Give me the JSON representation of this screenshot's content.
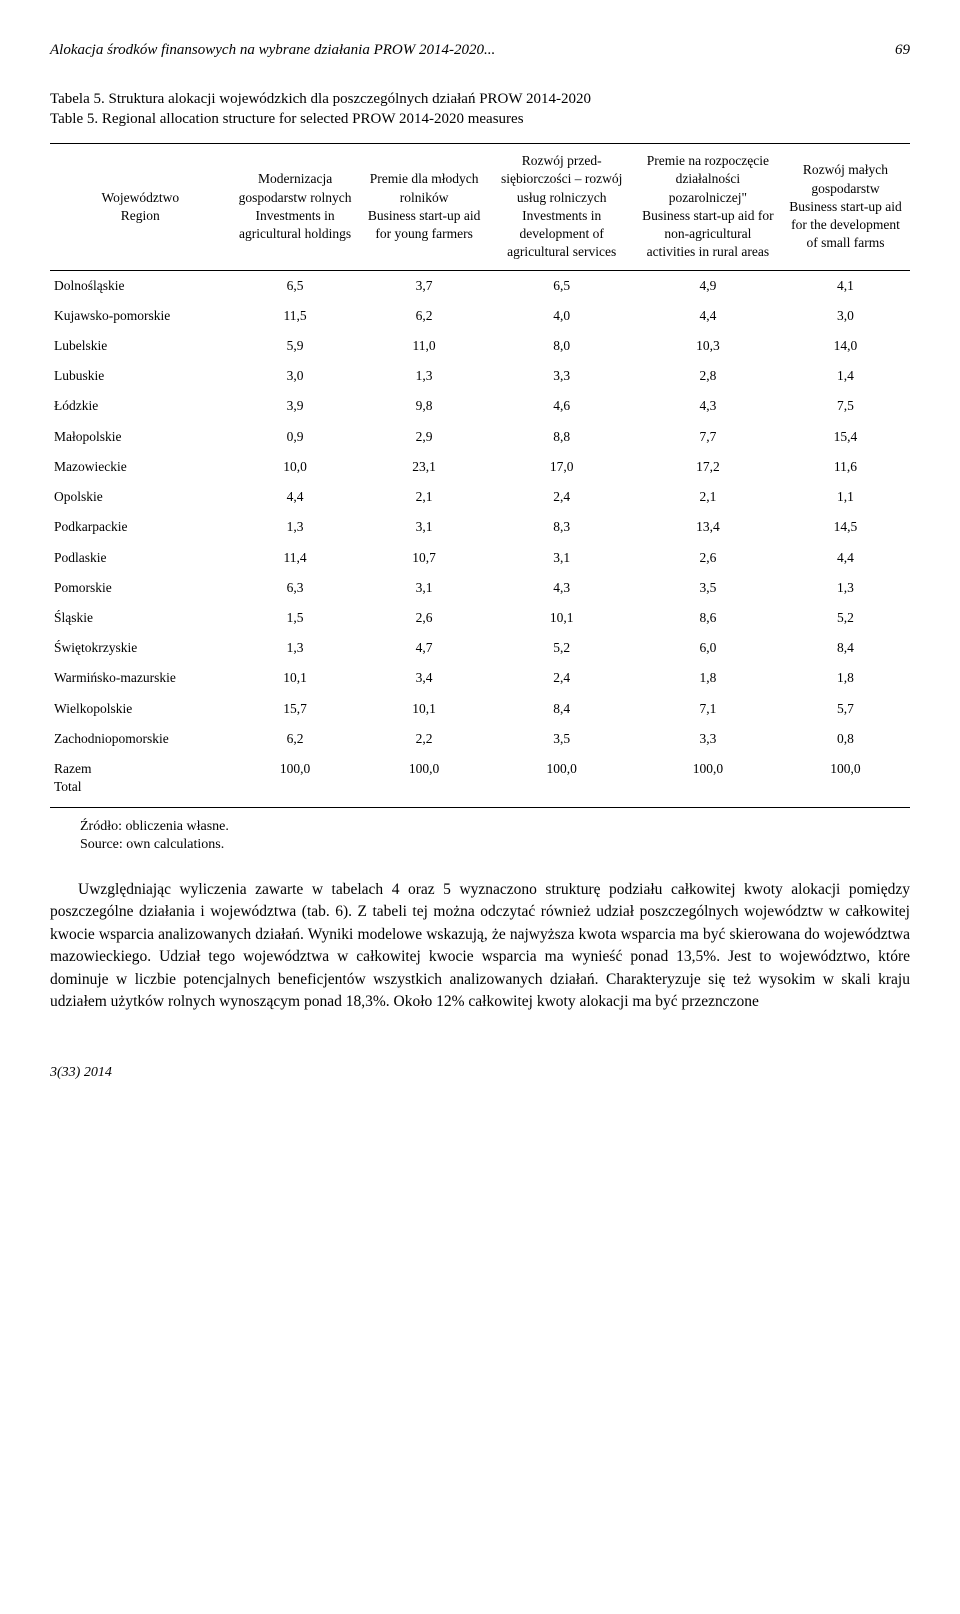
{
  "header": {
    "title_left": "Alokacja środków finansowych na wybrane działania PROW 2014-2020...",
    "page_num": "69"
  },
  "table_caption": {
    "line1": "Tabela 5. Struktura alokacji wojewódzkich dla poszczególnych działań PROW 2014-2020",
    "line2": "Table 5. Regional allocation structure for selected PROW 2014-2020 measures"
  },
  "columns": [
    {
      "pl": "Województwo",
      "en": "Region"
    },
    {
      "pl": "Modernizacja gospodarstw rolnych",
      "en": "Investments in agricultural holdings"
    },
    {
      "pl": "Premie dla młodych rolników",
      "en": "Business start-up aid for young farmers"
    },
    {
      "pl": "Rozwój przed-siębiorczości – rozwój usług rolniczych",
      "en": "Investments in development of agricultural services"
    },
    {
      "pl": "Premie na rozpoczęcie działalności pozarolniczej\"",
      "en": "Business start-up aid for non-agricultural activities in rural areas"
    },
    {
      "pl": "Rozwój małych gospodarstw",
      "en": "Business start-up aid for the development of small farms"
    }
  ],
  "rows": [
    {
      "name": "Dolnośląskie",
      "v": [
        "6,5",
        "3,7",
        "6,5",
        "4,9",
        "4,1"
      ]
    },
    {
      "name": "Kujawsko-pomorskie",
      "v": [
        "11,5",
        "6,2",
        "4,0",
        "4,4",
        "3,0"
      ]
    },
    {
      "name": "Lubelskie",
      "v": [
        "5,9",
        "11,0",
        "8,0",
        "10,3",
        "14,0"
      ]
    },
    {
      "name": "Lubuskie",
      "v": [
        "3,0",
        "1,3",
        "3,3",
        "2,8",
        "1,4"
      ]
    },
    {
      "name": "Łódzkie",
      "v": [
        "3,9",
        "9,8",
        "4,6",
        "4,3",
        "7,5"
      ]
    },
    {
      "name": "Małopolskie",
      "v": [
        "0,9",
        "2,9",
        "8,8",
        "7,7",
        "15,4"
      ]
    },
    {
      "name": "Mazowieckie",
      "v": [
        "10,0",
        "23,1",
        "17,0",
        "17,2",
        "11,6"
      ]
    },
    {
      "name": "Opolskie",
      "v": [
        "4,4",
        "2,1",
        "2,4",
        "2,1",
        "1,1"
      ]
    },
    {
      "name": "Podkarpackie",
      "v": [
        "1,3",
        "3,1",
        "8,3",
        "13,4",
        "14,5"
      ]
    },
    {
      "name": "Podlaskie",
      "v": [
        "11,4",
        "10,7",
        "3,1",
        "2,6",
        "4,4"
      ]
    },
    {
      "name": "Pomorskie",
      "v": [
        "6,3",
        "3,1",
        "4,3",
        "3,5",
        "1,3"
      ]
    },
    {
      "name": "Śląskie",
      "v": [
        "1,5",
        "2,6",
        "10,1",
        "8,6",
        "5,2"
      ]
    },
    {
      "name": "Świętokrzyskie",
      "v": [
        "1,3",
        "4,7",
        "5,2",
        "6,0",
        "8,4"
      ]
    },
    {
      "name": "Warmińsko-mazurskie",
      "v": [
        "10,1",
        "3,4",
        "2,4",
        "1,8",
        "1,8"
      ]
    },
    {
      "name": "Wielkopolskie",
      "v": [
        "15,7",
        "10,1",
        "8,4",
        "7,1",
        "5,7"
      ]
    },
    {
      "name": "Zachodniopomorskie",
      "v": [
        "6,2",
        "2,2",
        "3,5",
        "3,3",
        "0,8"
      ]
    }
  ],
  "total": {
    "name_pl": "Razem",
    "name_en": "Total",
    "v": [
      "100,0",
      "100,0",
      "100,0",
      "100,0",
      "100,0"
    ]
  },
  "source": {
    "pl": "Źródło: obliczenia własne.",
    "en": "Source: own calculations."
  },
  "paragraph": "Uwzględniając wyliczenia zawarte w tabelach 4 oraz 5 wyznaczono strukturę podziału całkowitej kwoty alokacji pomiędzy poszczególne działania i województwa (tab. 6). Z tabeli tej można odczytać również udział poszczególnych województw w całkowitej kwocie wsparcia analizowanych działań. Wyniki modelowe wskazują, że najwyższa kwota wsparcia ma być skierowana do województwa mazowieckiego. Udział tego województwa w całkowitej kwocie wsparcia ma wynieść ponad 13,5%. Jest to województwo, które dominuje w liczbie potencjalnych beneficjentów wszystkich analizowanych działań. Charakteryzuje się też wysokim w skali kraju udziałem użytków rolnych wynoszącym ponad 18,3%. Około 12% całkowitej kwoty alokacji ma być przeznczone",
  "footer": "3(33) 2014"
}
